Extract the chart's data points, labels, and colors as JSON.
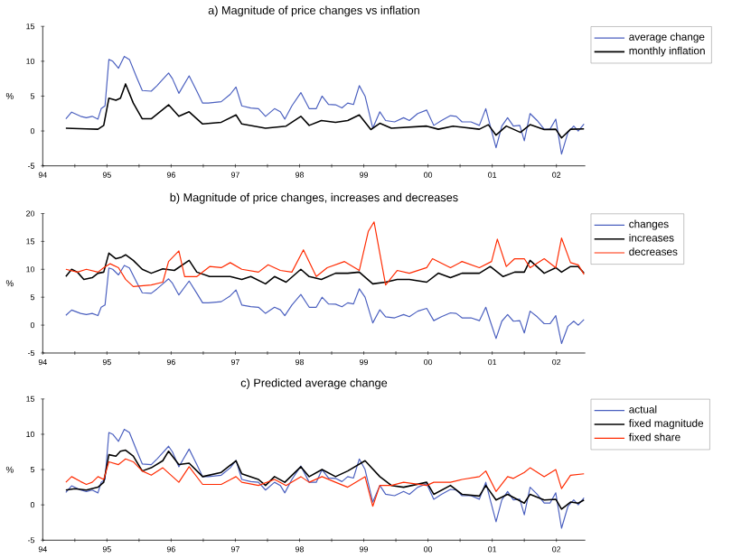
{
  "chart_data": [
    {
      "type": "line",
      "title": "a) Magnitude of price changes vs inflation",
      "ylabel": "%",
      "xlim": [
        1994,
        2002.45
      ],
      "ylim": [
        -5,
        15
      ],
      "yticks": [
        -5,
        0,
        5,
        10,
        15
      ],
      "xticks": [
        {
          "value": 1994,
          "label": "94"
        },
        {
          "value": 1994.5,
          "label": null
        },
        {
          "value": 1995,
          "label": "95"
        },
        {
          "value": 1995.5,
          "label": null
        },
        {
          "value": 1996,
          "label": "96"
        },
        {
          "value": 1996.5,
          "label": null
        },
        {
          "value": 1997,
          "label": "97"
        },
        {
          "value": 1997.5,
          "label": null
        },
        {
          "value": 1998,
          "label": "98"
        },
        {
          "value": 1998.5,
          "label": null
        },
        {
          "value": 1999,
          "label": "99"
        },
        {
          "value": 1999.5,
          "label": null
        },
        {
          "value": 2000,
          "label": "00"
        },
        {
          "value": 2000.5,
          "label": null
        },
        {
          "value": 2001,
          "label": "01"
        },
        {
          "value": 2001.5,
          "label": null
        },
        {
          "value": 2002,
          "label": "02"
        }
      ],
      "legend": "right",
      "series": [
        {
          "name": "average change",
          "color": "#4a5fbf",
          "x": [
            1994.36,
            1994.45,
            1994.59,
            1994.68,
            1994.77,
            1994.86,
            1994.91,
            1994.97,
            1995.03,
            1995.09,
            1995.18,
            1995.27,
            1995.35,
            1995.46,
            1995.55,
            1995.69,
            1995.78,
            1995.85,
            1995.96,
            1996.02,
            1996.12,
            1996.28,
            1996.4,
            1996.49,
            1996.58,
            1996.78,
            1996.92,
            1997.01,
            1997.1,
            1997.24,
            1997.36,
            1997.47,
            1997.61,
            1997.7,
            1997.77,
            1997.88,
            1998.02,
            1998.15,
            1998.26,
            1998.35,
            1998.45,
            1998.56,
            1998.66,
            1998.75,
            1998.84,
            1998.93,
            1999.02,
            1999.14,
            1999.25,
            1999.34,
            1999.48,
            1999.62,
            1999.71,
            1999.84,
            1999.98,
            2000.09,
            2000.21,
            2000.35,
            2000.44,
            2000.53,
            2000.67,
            2000.8,
            2000.9,
            2000.97,
            2001.06,
            2001.15,
            2001.24,
            2001.33,
            2001.43,
            2001.5,
            2001.59,
            2001.7,
            2001.81,
            2001.9,
            2001.99,
            2002.08,
            2002.18,
            2002.27,
            2002.34,
            2002.43
          ],
          "values": [
            1.75,
            2.7,
            2.1,
            1.9,
            2.1,
            1.7,
            3.2,
            3.6,
            10.25,
            10,
            9,
            10.7,
            10.25,
            7.75,
            5.8,
            5.7,
            6.5,
            7.2,
            8.3,
            7.5,
            5.4,
            7.9,
            5.7,
            4,
            4,
            4.2,
            5.25,
            6.3,
            3.6,
            3.3,
            3.2,
            2.1,
            3.2,
            2.75,
            1.7,
            3.6,
            5.5,
            3.2,
            3.2,
            5,
            3.8,
            3.75,
            3.3,
            4,
            3.8,
            6.5,
            5,
            0.4,
            2.75,
            1.5,
            1.3,
            1.9,
            1.5,
            2.5,
            3,
            0.8,
            1.5,
            2.2,
            2.1,
            1.3,
            1.3,
            0.8,
            3.2,
            0.7,
            -2.4,
            0.7,
            1.9,
            0.7,
            0.8,
            -1.4,
            2.5,
            1.5,
            0.25,
            0.25,
            1.7,
            -3.3,
            -0.2,
            0.7,
            0,
            1
          ]
        },
        {
          "name": "monthly inflation",
          "color": "#000000",
          "x": [
            1994.36,
            1994.68,
            1994.86,
            1994.95,
            1995.03,
            1995.14,
            1995.21,
            1995.29,
            1995.41,
            1995.55,
            1995.69,
            1995.96,
            1996.12,
            1996.28,
            1996.49,
            1996.78,
            1997.01,
            1997.1,
            1997.47,
            1997.79,
            1998.02,
            1998.15,
            1998.34,
            1998.56,
            1998.75,
            1998.93,
            1999.11,
            1999.25,
            1999.43,
            1999.98,
            2000.16,
            2000.39,
            2000.8,
            2000.94,
            2001.06,
            2001.22,
            2001.44,
            2001.59,
            2001.81,
            2001.99,
            2002.08,
            2002.22,
            2002.43
          ],
          "values": [
            0.4,
            0.3,
            0.25,
            0.8,
            4.7,
            4.4,
            4.7,
            6.75,
            4,
            1.75,
            1.75,
            3.75,
            2.1,
            2.75,
            1,
            1.25,
            2.3,
            1,
            0.4,
            0.7,
            2.1,
            0.8,
            1.5,
            1.25,
            1.5,
            2.3,
            0.2,
            1.1,
            0.4,
            0.7,
            0.25,
            0.7,
            0.25,
            0.9,
            -0.6,
            0.7,
            -0.2,
            0.9,
            0.2,
            0.25,
            -1,
            0.25,
            0.3
          ]
        }
      ]
    },
    {
      "type": "line",
      "title": "b) Magnitude of price changes, increases and decreases",
      "ylabel": "%",
      "xlim": [
        1994,
        2002.45
      ],
      "ylim": [
        -5,
        20
      ],
      "yticks": [
        -5,
        0,
        5,
        10,
        15,
        20
      ],
      "xticks": [
        {
          "value": 1994,
          "label": "94"
        },
        {
          "value": 1994.5,
          "label": null
        },
        {
          "value": 1995,
          "label": "95"
        },
        {
          "value": 1995.5,
          "label": null
        },
        {
          "value": 1996,
          "label": "96"
        },
        {
          "value": 1996.5,
          "label": null
        },
        {
          "value": 1997,
          "label": "97"
        },
        {
          "value": 1997.5,
          "label": null
        },
        {
          "value": 1998,
          "label": "98"
        },
        {
          "value": 1998.5,
          "label": null
        },
        {
          "value": 1999,
          "label": "99"
        },
        {
          "value": 1999.5,
          "label": null
        },
        {
          "value": 2000,
          "label": "00"
        },
        {
          "value": 2000.5,
          "label": null
        },
        {
          "value": 2001,
          "label": "01"
        },
        {
          "value": 2001.5,
          "label": null
        },
        {
          "value": 2002,
          "label": "02"
        }
      ],
      "legend": "right",
      "series": [
        {
          "name": "changes",
          "color": "#4a5fbf",
          "x": [
            1994.36,
            1994.45,
            1994.59,
            1994.68,
            1994.77,
            1994.86,
            1994.91,
            1994.97,
            1995.03,
            1995.09,
            1995.18,
            1995.27,
            1995.35,
            1995.46,
            1995.55,
            1995.69,
            1995.78,
            1995.85,
            1995.96,
            1996.02,
            1996.12,
            1996.28,
            1996.4,
            1996.49,
            1996.58,
            1996.78,
            1996.92,
            1997.01,
            1997.1,
            1997.24,
            1997.36,
            1997.47,
            1997.61,
            1997.7,
            1997.77,
            1997.88,
            1998.02,
            1998.15,
            1998.26,
            1998.35,
            1998.45,
            1998.56,
            1998.66,
            1998.75,
            1998.84,
            1998.93,
            1999.02,
            1999.14,
            1999.25,
            1999.34,
            1999.48,
            1999.62,
            1999.71,
            1999.84,
            1999.98,
            2000.09,
            2000.21,
            2000.35,
            2000.44,
            2000.53,
            2000.67,
            2000.8,
            2000.9,
            2000.97,
            2001.06,
            2001.15,
            2001.24,
            2001.33,
            2001.43,
            2001.5,
            2001.59,
            2001.7,
            2001.81,
            2001.9,
            2001.99,
            2002.08,
            2002.18,
            2002.27,
            2002.34,
            2002.43
          ],
          "values": [
            1.75,
            2.7,
            2.1,
            1.9,
            2.1,
            1.7,
            3.2,
            3.6,
            10.25,
            10,
            9,
            10.7,
            10.25,
            7.75,
            5.8,
            5.7,
            6.5,
            7.2,
            8.3,
            7.5,
            5.4,
            7.9,
            5.7,
            4,
            4,
            4.2,
            5.25,
            6.3,
            3.6,
            3.3,
            3.2,
            2.1,
            3.2,
            2.75,
            1.7,
            3.6,
            5.5,
            3.2,
            3.2,
            5,
            3.8,
            3.75,
            3.3,
            4,
            3.8,
            6.5,
            5,
            0.4,
            2.75,
            1.5,
            1.3,
            1.9,
            1.5,
            2.5,
            3,
            0.8,
            1.5,
            2.2,
            2.1,
            1.3,
            1.3,
            0.8,
            3.2,
            0.7,
            -2.4,
            0.7,
            1.9,
            0.7,
            0.8,
            -1.4,
            2.5,
            1.5,
            0.25,
            0.25,
            1.7,
            -3.3,
            -0.2,
            0.7,
            0,
            1
          ]
        },
        {
          "name": "increases",
          "color": "#000000",
          "x": [
            1994.36,
            1994.45,
            1994.54,
            1994.64,
            1994.77,
            1994.86,
            1994.95,
            1995.03,
            1995.14,
            1995.23,
            1995.29,
            1995.41,
            1995.55,
            1995.69,
            1995.87,
            1996.05,
            1996.28,
            1996.4,
            1996.6,
            1996.92,
            1997.1,
            1997.24,
            1997.47,
            1997.61,
            1997.79,
            1998.02,
            1998.15,
            1998.34,
            1998.56,
            1998.75,
            1998.93,
            1999.14,
            1999.34,
            1999.52,
            1999.71,
            1999.98,
            2000.16,
            2000.35,
            2000.53,
            2000.8,
            2000.97,
            2001.17,
            2001.35,
            2001.5,
            2001.59,
            2001.81,
            2001.99,
            2002.08,
            2002.22,
            2002.34,
            2002.43
          ],
          "values": [
            8.7,
            10,
            9.5,
            8.2,
            8.5,
            9.3,
            9.5,
            12.9,
            11.9,
            12.2,
            12.6,
            11.6,
            10,
            9.3,
            10.1,
            9.8,
            11.6,
            9.5,
            8.7,
            8.7,
            8.2,
            8.7,
            7.4,
            8.7,
            7.7,
            10,
            8.7,
            8.2,
            9.3,
            9.3,
            9.5,
            7.4,
            7.7,
            8.2,
            8.2,
            7.7,
            9.3,
            8.5,
            9.3,
            9.3,
            10.5,
            8.7,
            9.5,
            9.5,
            11.6,
            9.3,
            10.3,
            9.5,
            10.5,
            10.5,
            9.3
          ]
        },
        {
          "name": "decreases",
          "color": "#ff2a00",
          "x": [
            1994.36,
            1994.54,
            1994.68,
            1994.86,
            1994.95,
            1995.05,
            1995.18,
            1995.29,
            1995.41,
            1995.69,
            1995.87,
            1995.96,
            1996.12,
            1996.21,
            1996.4,
            1996.6,
            1996.78,
            1996.92,
            1997.1,
            1997.36,
            1997.51,
            1997.7,
            1997.88,
            1998.06,
            1998.26,
            1998.43,
            1998.7,
            1998.93,
            1999.07,
            1999.16,
            1999.34,
            1999.52,
            1999.71,
            1999.98,
            2000.07,
            2000.35,
            2000.53,
            2000.8,
            2000.99,
            2001.08,
            2001.22,
            2001.35,
            2001.5,
            2001.59,
            2001.81,
            2001.99,
            2002.08,
            2002.22,
            2002.34,
            2002.43
          ],
          "values": [
            10,
            9.5,
            10,
            9.5,
            10.3,
            11,
            10.3,
            8.2,
            6.9,
            7.2,
            7.7,
            11.4,
            13.3,
            8.7,
            8.7,
            10.5,
            10.3,
            11.2,
            10,
            9.5,
            10.8,
            9.8,
            9.5,
            13.5,
            8.7,
            10.3,
            11.4,
            9.8,
            16.8,
            18.5,
            7.2,
            9.8,
            9.3,
            10.3,
            11.9,
            10.3,
            11.4,
            10.3,
            11.4,
            15.4,
            10.5,
            11.9,
            11.9,
            10.3,
            11.9,
            10.3,
            15.6,
            11.2,
            10.8,
            9.1
          ]
        }
      ]
    },
    {
      "type": "line",
      "title": "c) Predicted average change",
      "ylabel": "%",
      "xlim": [
        1994,
        2002.45
      ],
      "ylim": [
        -5,
        15
      ],
      "yticks": [
        -5,
        0,
        5,
        10,
        15
      ],
      "xticks": [
        {
          "value": 1994,
          "label": "94"
        },
        {
          "value": 1994.5,
          "label": null
        },
        {
          "value": 1995,
          "label": "95"
        },
        {
          "value": 1995.5,
          "label": null
        },
        {
          "value": 1996,
          "label": "96"
        },
        {
          "value": 1996.5,
          "label": null
        },
        {
          "value": 1997,
          "label": "97"
        },
        {
          "value": 1997.5,
          "label": null
        },
        {
          "value": 1998,
          "label": "98"
        },
        {
          "value": 1998.5,
          "label": null
        },
        {
          "value": 1999,
          "label": "99"
        },
        {
          "value": 1999.5,
          "label": null
        },
        {
          "value": 2000,
          "label": "00"
        },
        {
          "value": 2000.5,
          "label": null
        },
        {
          "value": 2001,
          "label": "01"
        },
        {
          "value": 2001.5,
          "label": null
        },
        {
          "value": 2002,
          "label": "02"
        }
      ],
      "legend": "right",
      "series": [
        {
          "name": "actual",
          "color": "#4a5fbf",
          "x": [
            1994.36,
            1994.45,
            1994.59,
            1994.68,
            1994.77,
            1994.86,
            1994.91,
            1994.97,
            1995.03,
            1995.09,
            1995.18,
            1995.27,
            1995.35,
            1995.46,
            1995.55,
            1995.69,
            1995.78,
            1995.85,
            1995.96,
            1996.02,
            1996.12,
            1996.28,
            1996.4,
            1996.49,
            1996.58,
            1996.78,
            1996.92,
            1997.01,
            1997.1,
            1997.24,
            1997.36,
            1997.47,
            1997.61,
            1997.7,
            1997.77,
            1997.88,
            1998.02,
            1998.15,
            1998.26,
            1998.35,
            1998.45,
            1998.56,
            1998.66,
            1998.75,
            1998.84,
            1998.93,
            1999.02,
            1999.14,
            1999.25,
            1999.34,
            1999.48,
            1999.62,
            1999.71,
            1999.84,
            1999.98,
            2000.09,
            2000.21,
            2000.35,
            2000.44,
            2000.53,
            2000.67,
            2000.8,
            2000.9,
            2000.97,
            2001.06,
            2001.15,
            2001.24,
            2001.33,
            2001.43,
            2001.5,
            2001.59,
            2001.7,
            2001.81,
            2001.9,
            2001.99,
            2002.08,
            2002.18,
            2002.27,
            2002.34,
            2002.43
          ],
          "values": [
            1.75,
            2.7,
            2.1,
            1.9,
            2.1,
            1.7,
            3.2,
            3.6,
            10.25,
            10,
            9,
            10.7,
            10.25,
            7.75,
            5.8,
            5.7,
            6.5,
            7.2,
            8.3,
            7.5,
            5.4,
            7.9,
            5.7,
            4,
            4,
            4.2,
            5.25,
            6.3,
            3.6,
            3.3,
            3.2,
            2.1,
            3.2,
            2.75,
            1.7,
            3.6,
            5.5,
            3.2,
            3.2,
            5,
            3.8,
            3.75,
            3.3,
            4,
            3.8,
            6.5,
            5,
            0.4,
            2.75,
            1.5,
            1.3,
            1.9,
            1.5,
            2.5,
            3,
            0.8,
            1.5,
            2.2,
            2.1,
            1.3,
            1.3,
            0.8,
            3.2,
            0.7,
            -2.4,
            0.7,
            1.9,
            0.7,
            0.8,
            -1.4,
            2.5,
            1.5,
            0.25,
            0.25,
            1.7,
            -3.3,
            -0.2,
            0.7,
            0,
            1
          ]
        },
        {
          "name": "fixed magnitude",
          "color": "#000000",
          "x": [
            1994.36,
            1994.5,
            1994.68,
            1994.86,
            1994.95,
            1995.03,
            1995.14,
            1995.21,
            1995.29,
            1995.41,
            1995.55,
            1995.69,
            1995.87,
            1995.96,
            1996.12,
            1996.28,
            1996.49,
            1996.78,
            1997.01,
            1997.1,
            1997.36,
            1997.47,
            1997.61,
            1997.77,
            1998.02,
            1998.15,
            1998.35,
            1998.56,
            1998.75,
            1999.02,
            1999.25,
            1999.43,
            1999.62,
            1999.98,
            2000.09,
            2000.35,
            2000.53,
            2000.8,
            2000.9,
            2001.06,
            2001.24,
            2001.5,
            2001.59,
            2001.81,
            2001.99,
            2002.08,
            2002.22,
            2002.34,
            2002.43
          ],
          "values": [
            2.1,
            2.3,
            2.1,
            2.5,
            3.2,
            7.1,
            6.9,
            7.6,
            7.75,
            6.9,
            4.8,
            5.25,
            6.25,
            7.6,
            5.7,
            5.9,
            4,
            4.6,
            6.25,
            4.4,
            3.6,
            2.75,
            4,
            3.2,
            5.4,
            4,
            5,
            4,
            4.8,
            6.25,
            4,
            2.75,
            2.5,
            3.2,
            1.5,
            2.75,
            1.5,
            1.25,
            2.75,
            0.7,
            1.5,
            0.25,
            1.5,
            0.7,
            0.8,
            -0.6,
            0.4,
            0.25,
            0.7
          ]
        },
        {
          "name": "fixed share",
          "color": "#ff2a00",
          "x": [
            1994.36,
            1994.45,
            1994.59,
            1994.68,
            1994.77,
            1994.86,
            1994.95,
            1995.03,
            1995.18,
            1995.29,
            1995.41,
            1995.55,
            1995.69,
            1995.87,
            1996.12,
            1996.28,
            1996.49,
            1996.78,
            1997.01,
            1997.1,
            1997.36,
            1997.61,
            1997.79,
            1998.02,
            1998.15,
            1998.35,
            1998.56,
            1998.75,
            1999.02,
            1999.14,
            1999.25,
            1999.43,
            1999.62,
            1999.98,
            2000.09,
            2000.35,
            2000.53,
            2000.8,
            2000.9,
            2001.06,
            2001.24,
            2001.33,
            2001.5,
            2001.59,
            2001.81,
            2001.99,
            2002.08,
            2002.22,
            2002.43
          ],
          "values": [
            3.2,
            4,
            3.3,
            2.9,
            3.2,
            4,
            3.6,
            6.1,
            5.7,
            6.5,
            6.1,
            4.8,
            4.2,
            5.25,
            3.2,
            5.4,
            2.9,
            2.9,
            4,
            3.2,
            2.75,
            3.6,
            2.75,
            4,
            3.2,
            4,
            3.2,
            2.5,
            4,
            -0.2,
            2.75,
            2.75,
            3.2,
            2.75,
            3.2,
            3.2,
            3.6,
            4,
            4.8,
            1.9,
            4,
            3.75,
            4.6,
            5.25,
            4,
            5,
            2.3,
            4.2,
            4.4
          ]
        }
      ]
    }
  ]
}
